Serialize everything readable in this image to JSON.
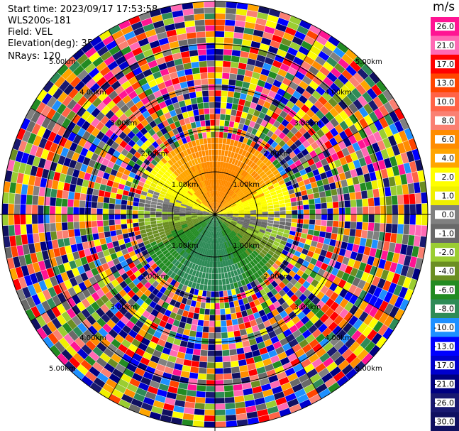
{
  "header": {
    "start_time": "Start time: 2023/09/17 17:53:58",
    "instrument": "WLS200s-181",
    "field": "Field: VEL",
    "elevation": "Elevation(deg): 35.30",
    "nrays": "NRays: 120"
  },
  "chart_data": {
    "type": "heatmap",
    "projection": "polar-ppi",
    "field": "VEL",
    "rays": 120,
    "range_rings_km": [
      1.0,
      2.0,
      3.0,
      4.0,
      5.0
    ],
    "ring_labels": [
      "1.00km",
      "2.00km",
      "3.00km",
      "4.00km",
      "5.00km"
    ],
    "max_range_km": 5.0,
    "colorbar": {
      "unit": "m/s",
      "ticks": [
        "26.0",
        "21.0",
        "17.0",
        "13.0",
        "10.0",
        "8.0",
        "6.0",
        "4.0",
        "2.0",
        "1.0",
        "0.0",
        "-1.0",
        "-2.0",
        "-4.0",
        "-6.0",
        "-8.0",
        "-10.0",
        "-13.0",
        "-17.0",
        "-21.0",
        "-26.0",
        "-30.0"
      ],
      "colors": [
        "#ff1493",
        "#ff69b4",
        "#ff0000",
        "#ff4500",
        "#ff6347",
        "#fa8072",
        "#ff8c00",
        "#ffa500",
        "#ffff00",
        "#f0f000",
        "#808080",
        "#696969",
        "#9acd32",
        "#6b8e23",
        "#228b22",
        "#2e8b57",
        "#1e90ff",
        "#0000ff",
        "#0000cd",
        "#000080",
        "#191970",
        "#101060"
      ]
    }
  }
}
